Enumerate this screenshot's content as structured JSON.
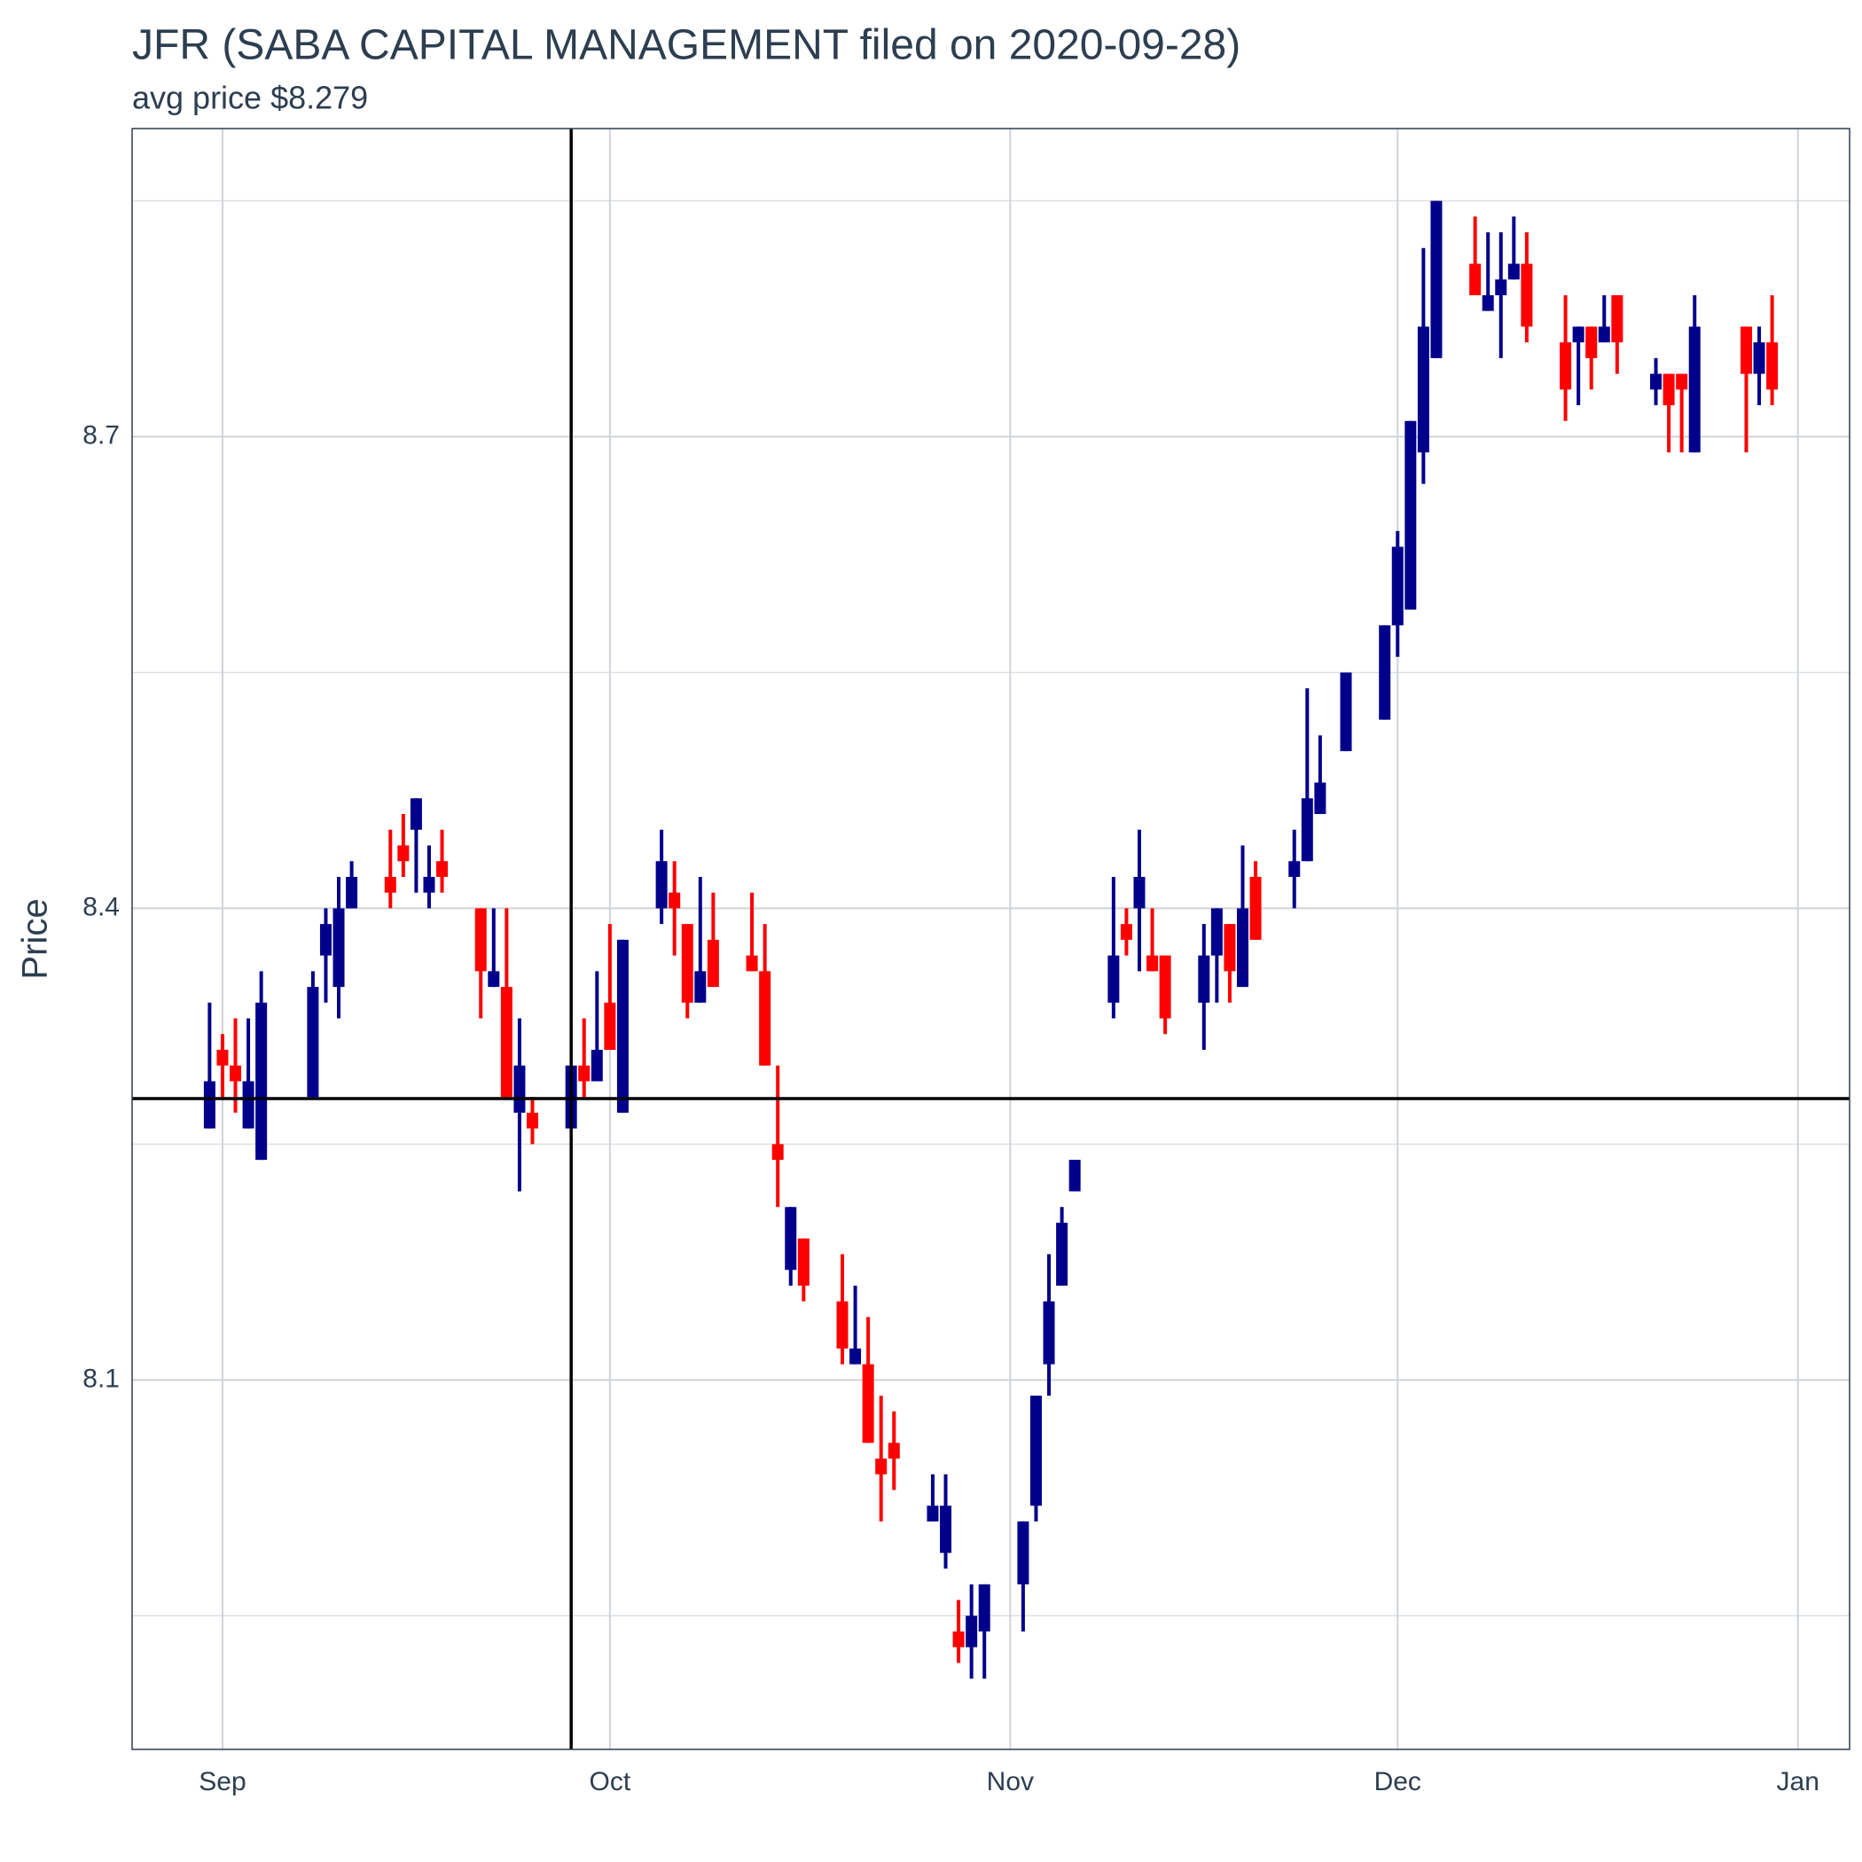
{
  "chart_data": {
    "type": "candlestick",
    "title": "JFR (SABA CAPITAL MANAGEMENT filed on 2020-09-28)",
    "subtitle": "avg price $8.279",
    "y_label": "Price",
    "x": [
      "2020-08-31",
      "2020-09-01",
      "2020-09-02",
      "2020-09-03",
      "2020-09-04",
      "2020-09-08",
      "2020-09-09",
      "2020-09-10",
      "2020-09-11",
      "2020-09-14",
      "2020-09-15",
      "2020-09-16",
      "2020-09-17",
      "2020-09-18",
      "2020-09-21",
      "2020-09-22",
      "2020-09-23",
      "2020-09-24",
      "2020-09-25",
      "2020-09-28",
      "2020-09-29",
      "2020-09-30",
      "2020-10-01",
      "2020-10-02",
      "2020-10-05",
      "2020-10-06",
      "2020-10-07",
      "2020-10-08",
      "2020-10-09",
      "2020-10-12",
      "2020-10-13",
      "2020-10-14",
      "2020-10-15",
      "2020-10-16",
      "2020-10-19",
      "2020-10-20",
      "2020-10-21",
      "2020-10-22",
      "2020-10-23",
      "2020-10-26",
      "2020-10-27",
      "2020-10-28",
      "2020-10-29",
      "2020-10-30",
      "2020-11-02",
      "2020-11-03",
      "2020-11-04",
      "2020-11-05",
      "2020-11-06",
      "2020-11-09",
      "2020-11-10",
      "2020-11-11",
      "2020-11-12",
      "2020-11-13",
      "2020-11-16",
      "2020-11-17",
      "2020-11-18",
      "2020-11-19",
      "2020-11-20",
      "2020-11-23",
      "2020-11-24",
      "2020-11-25",
      "2020-11-27",
      "2020-11-30",
      "2020-12-01",
      "2020-12-02",
      "2020-12-03",
      "2020-12-04",
      "2020-12-07",
      "2020-12-08",
      "2020-12-09",
      "2020-12-10",
      "2020-12-11",
      "2020-12-14",
      "2020-12-15",
      "2020-12-16",
      "2020-12-17",
      "2020-12-18",
      "2020-12-21",
      "2020-12-22",
      "2020-12-23",
      "2020-12-24",
      "2020-12-28",
      "2020-12-29",
      "2020-12-30"
    ],
    "open": [
      8.26,
      8.31,
      8.3,
      8.26,
      8.24,
      8.28,
      8.37,
      8.35,
      8.4,
      8.42,
      8.44,
      8.45,
      8.41,
      8.43,
      8.4,
      8.35,
      8.35,
      8.27,
      8.27,
      8.26,
      8.3,
      8.29,
      8.34,
      8.27,
      8.4,
      8.41,
      8.39,
      8.34,
      8.38,
      8.37,
      8.36,
      8.25,
      8.17,
      8.19,
      8.15,
      8.11,
      8.11,
      8.05,
      8.06,
      8.01,
      7.99,
      7.94,
      7.93,
      7.94,
      7.97,
      8.02,
      8.11,
      8.16,
      8.22,
      8.34,
      8.39,
      8.4,
      8.37,
      8.37,
      8.34,
      8.37,
      8.39,
      8.35,
      8.42,
      8.42,
      8.43,
      8.46,
      8.5,
      8.52,
      8.58,
      8.59,
      8.69,
      8.75,
      8.81,
      8.78,
      8.79,
      8.8,
      8.81,
      8.76,
      8.76,
      8.77,
      8.76,
      8.79,
      8.73,
      8.74,
      8.74,
      8.69,
      8.77,
      8.74,
      8.76
    ],
    "high": [
      8.34,
      8.32,
      8.33,
      8.33,
      8.36,
      8.36,
      8.4,
      8.42,
      8.43,
      8.45,
      8.46,
      8.47,
      8.44,
      8.45,
      8.4,
      8.4,
      8.4,
      8.33,
      8.28,
      8.3,
      8.33,
      8.36,
      8.39,
      8.38,
      8.45,
      8.43,
      8.39,
      8.42,
      8.41,
      8.41,
      8.39,
      8.3,
      8.21,
      8.19,
      8.18,
      8.16,
      8.14,
      8.09,
      8.08,
      8.04,
      8.04,
      7.96,
      7.97,
      7.97,
      8.01,
      8.09,
      8.18,
      8.21,
      8.24,
      8.42,
      8.4,
      8.45,
      8.4,
      8.37,
      8.39,
      8.4,
      8.39,
      8.44,
      8.43,
      8.45,
      8.54,
      8.51,
      8.55,
      8.58,
      8.64,
      8.71,
      8.82,
      8.85,
      8.84,
      8.83,
      8.83,
      8.84,
      8.83,
      8.79,
      8.77,
      8.77,
      8.79,
      8.79,
      8.75,
      8.74,
      8.74,
      8.79,
      8.77,
      8.77,
      8.79
    ],
    "low": [
      8.26,
      8.28,
      8.27,
      8.26,
      8.24,
      8.28,
      8.34,
      8.33,
      8.4,
      8.4,
      8.42,
      8.41,
      8.4,
      8.41,
      8.33,
      8.35,
      8.28,
      8.22,
      8.25,
      8.26,
      8.28,
      8.29,
      8.31,
      8.27,
      8.39,
      8.37,
      8.33,
      8.34,
      8.35,
      8.36,
      8.3,
      8.21,
      8.16,
      8.15,
      8.11,
      8.11,
      8.06,
      8.01,
      8.03,
      8.01,
      7.98,
      7.92,
      7.91,
      7.91,
      7.94,
      8.01,
      8.09,
      8.16,
      8.22,
      8.33,
      8.37,
      8.36,
      8.36,
      8.32,
      8.31,
      8.34,
      8.34,
      8.35,
      8.38,
      8.4,
      8.43,
      8.46,
      8.5,
      8.52,
      8.56,
      8.59,
      8.67,
      8.75,
      8.79,
      8.78,
      8.75,
      8.8,
      8.76,
      8.71,
      8.72,
      8.73,
      8.76,
      8.74,
      8.72,
      8.69,
      8.69,
      8.69,
      8.69,
      8.72,
      8.72
    ],
    "close": [
      8.29,
      8.3,
      8.29,
      8.29,
      8.34,
      8.35,
      8.39,
      8.4,
      8.42,
      8.41,
      8.43,
      8.47,
      8.42,
      8.42,
      8.36,
      8.36,
      8.28,
      8.3,
      8.26,
      8.3,
      8.29,
      8.31,
      8.31,
      8.38,
      8.43,
      8.4,
      8.34,
      8.36,
      8.35,
      8.36,
      8.3,
      8.24,
      8.21,
      8.16,
      8.12,
      8.12,
      8.06,
      8.04,
      8.05,
      8.02,
      8.02,
      7.93,
      7.95,
      7.97,
      8.01,
      8.09,
      8.15,
      8.2,
      8.24,
      8.37,
      8.38,
      8.42,
      8.36,
      8.33,
      8.37,
      8.4,
      8.36,
      8.4,
      8.38,
      8.43,
      8.47,
      8.48,
      8.55,
      8.58,
      8.63,
      8.71,
      8.77,
      8.85,
      8.79,
      8.79,
      8.8,
      8.81,
      8.77,
      8.73,
      8.77,
      8.75,
      8.77,
      8.76,
      8.74,
      8.72,
      8.73,
      8.77,
      8.74,
      8.76,
      8.73
    ],
    "up_color": "#00008b",
    "down_color": "#ff0000",
    "xlim": [
      "2020-08-25",
      "2021-01-05"
    ],
    "xticks": [
      {
        "value": "2020-09-01",
        "label": "Sep"
      },
      {
        "value": "2020-10-01",
        "label": "Oct"
      },
      {
        "value": "2020-11-01",
        "label": "Nov"
      },
      {
        "value": "2020-12-01",
        "label": "Dec"
      },
      {
        "value": "2021-01-01",
        "label": "Jan"
      }
    ],
    "ylim": [
      7.865,
      8.896
    ],
    "yticks": [
      8.1,
      8.4,
      8.7
    ],
    "y_minor_grid": [
      7.95,
      8.25,
      8.55,
      8.85
    ],
    "grid": true,
    "hline": 8.279,
    "vline": "2020-09-28"
  }
}
